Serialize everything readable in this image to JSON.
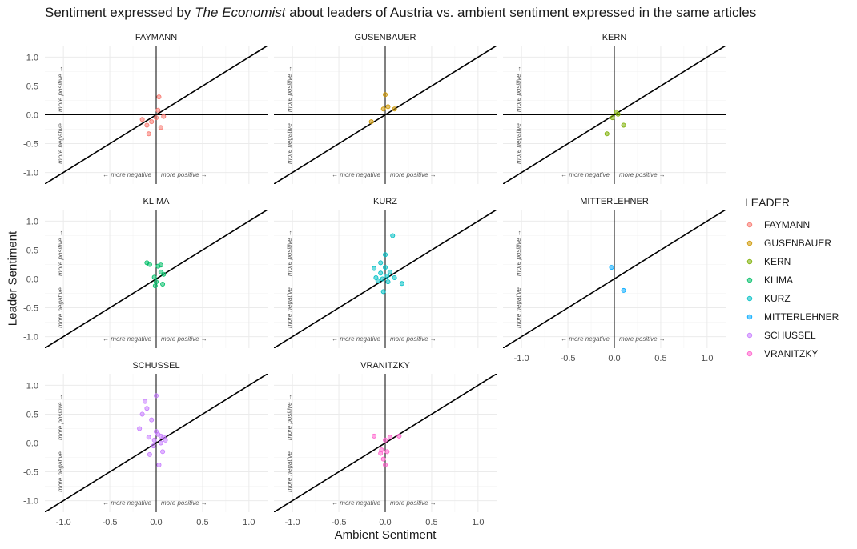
{
  "title": {
    "pre": "Sentiment expressed by ",
    "italic": "The Economist",
    "post": " about leaders of Austria vs. ambient sentiment expressed in the same articles"
  },
  "legend_title": "LEADER",
  "annotations": {
    "more_positive_x": "more positive →",
    "more_negative_x": "← more negative",
    "more_positive_y": "more positive →",
    "more_negative_y": "more negative"
  },
  "chart_data": {
    "type": "scatter",
    "title": "Sentiment expressed by The Economist about leaders of Austria vs. ambient sentiment expressed in the same articles",
    "xlabel": "Ambient Sentiment",
    "ylabel": "Leader Sentiment",
    "xlim": [
      -1.2,
      1.2
    ],
    "ylim": [
      -1.2,
      1.2
    ],
    "x_ticks": [
      "-1.0",
      "-0.5",
      "0.0",
      "0.5",
      "1.0"
    ],
    "y_ticks": [
      "1.0",
      "0.5",
      "0.0",
      "-0.5",
      "-1.0"
    ],
    "grid": true,
    "reference_lines": [
      "x = 0",
      "y = 0",
      "y = x"
    ],
    "legend_position": "right",
    "legend_title": "LEADER",
    "series": [
      {
        "name": "FAYMANN",
        "color": "#F8766D",
        "x": [
          -0.15,
          -0.1,
          -0.08,
          -0.05,
          0.0,
          0.02,
          0.03,
          0.05,
          0.08
        ],
        "y": [
          -0.08,
          -0.18,
          -0.33,
          -0.12,
          -0.05,
          0.08,
          0.31,
          -0.22,
          -0.03
        ]
      },
      {
        "name": "GUSENBAUER",
        "color": "#CD9600",
        "x": [
          -0.15,
          -0.02,
          0.0,
          0.03,
          0.1
        ],
        "y": [
          -0.12,
          0.1,
          0.35,
          0.14,
          0.1
        ]
      },
      {
        "name": "KERN",
        "color": "#7CAE00",
        "x": [
          -0.08,
          -0.02,
          0.02,
          0.04,
          0.1
        ],
        "y": [
          -0.33,
          -0.05,
          0.05,
          0.01,
          -0.18
        ]
      },
      {
        "name": "KLIMA",
        "color": "#00BE67",
        "x": [
          -0.1,
          -0.07,
          -0.02,
          -0.01,
          0.0,
          0.02,
          0.05,
          0.05,
          0.07,
          0.08
        ],
        "y": [
          0.28,
          0.25,
          0.03,
          -0.12,
          -0.05,
          0.22,
          0.24,
          0.12,
          -0.09,
          0.08
        ]
      },
      {
        "name": "KURZ",
        "color": "#00BFC4",
        "x": [
          -0.12,
          -0.1,
          -0.08,
          -0.05,
          -0.05,
          -0.03,
          -0.02,
          0.0,
          0.0,
          0.02,
          0.03,
          0.05,
          0.08,
          0.1,
          0.18
        ],
        "y": [
          0.18,
          0.02,
          -0.03,
          0.28,
          0.1,
          0.0,
          -0.22,
          0.42,
          0.2,
          0.05,
          -0.05,
          0.12,
          0.75,
          0.02,
          -0.08
        ]
      },
      {
        "name": "MITTERLEHNER",
        "color": "#00A9FF",
        "x": [
          -0.03,
          0.1
        ],
        "y": [
          0.2,
          -0.2
        ]
      },
      {
        "name": "SCHUSSEL",
        "color": "#C77CFF",
        "x": [
          -0.18,
          -0.15,
          -0.12,
          -0.1,
          -0.08,
          -0.07,
          -0.05,
          -0.03,
          -0.02,
          0.0,
          0.0,
          0.02,
          0.03,
          0.05,
          0.05,
          0.07,
          0.08,
          0.1
        ],
        "y": [
          0.25,
          0.5,
          0.72,
          0.6,
          0.1,
          -0.2,
          0.4,
          -0.05,
          0.05,
          0.2,
          0.82,
          0.15,
          -0.38,
          0.0,
          0.12,
          -0.15,
          0.1,
          0.05
        ]
      },
      {
        "name": "VRANITZKY",
        "color": "#FF61CC",
        "x": [
          -0.12,
          -0.05,
          -0.04,
          -0.02,
          0.0,
          0.0,
          0.02,
          0.05,
          0.15
        ],
        "y": [
          0.12,
          -0.18,
          -0.12,
          -0.28,
          -0.38,
          0.05,
          -0.15,
          0.1,
          0.12
        ]
      }
    ]
  }
}
